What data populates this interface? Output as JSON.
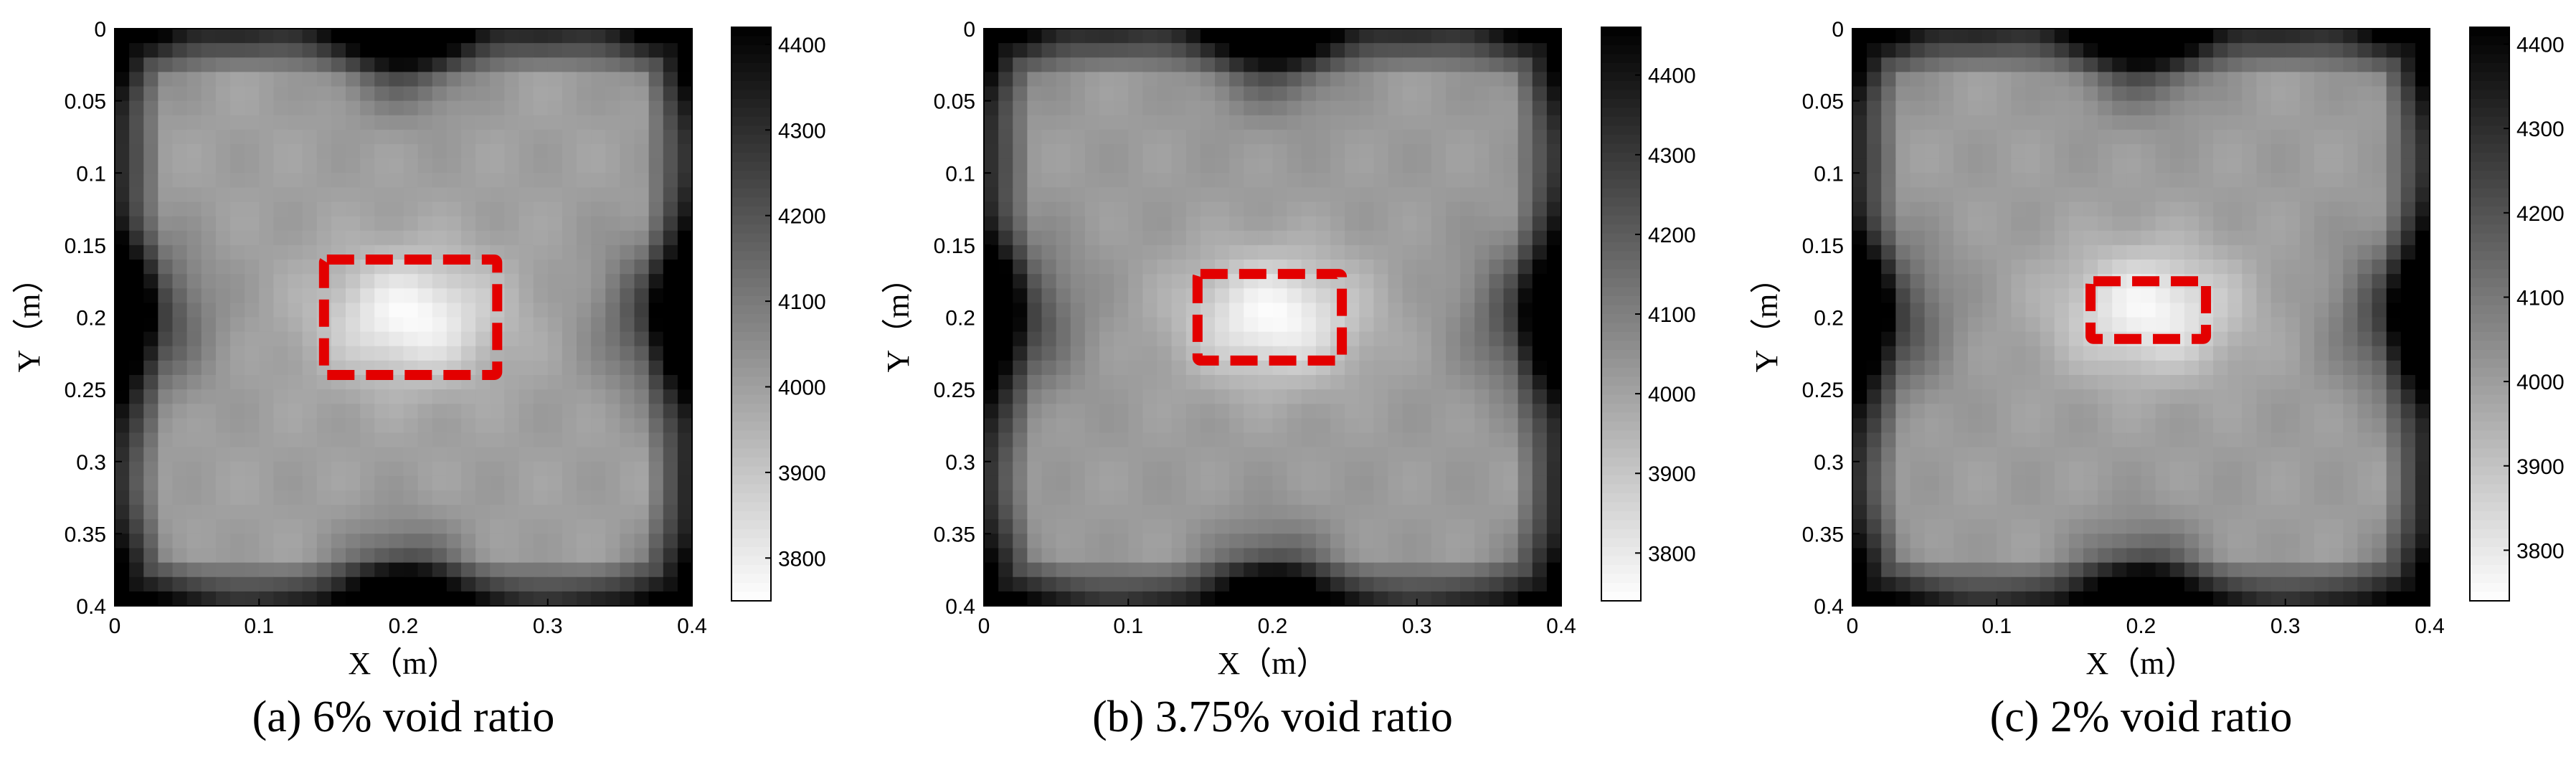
{
  "chart_data": [
    {
      "type": "heatmap",
      "caption": "(a) 6% void ratio",
      "xlabel": "X（m）",
      "ylabel": "Y（m）",
      "xlim": [
        0,
        0.4
      ],
      "ylim": [
        0,
        0.4
      ],
      "y_axis_direction": "top-to-bottom",
      "x_ticks": [
        "0",
        "0.1",
        "0.2",
        "0.3",
        "0.4"
      ],
      "y_ticks": [
        "0",
        "0.05",
        "0.1",
        "0.15",
        "0.2",
        "0.25",
        "0.3",
        "0.35",
        "0.4"
      ],
      "colorbar": {
        "range": [
          3750,
          4420
        ],
        "ticks": [
          "3800",
          "3900",
          "4000",
          "4100",
          "4200",
          "4300",
          "4400"
        ],
        "colormap": "gray-reversed"
      },
      "field": {
        "grid_size": 40,
        "interior_value": 4000,
        "edge_value": 4340,
        "corner_value": 4380,
        "notch_value": 4420,
        "void_center": [
          0.205,
          0.2
        ],
        "void_value": 3760
      },
      "void_region": {
        "x": [
          0.145,
          0.265
        ],
        "y": [
          0.16,
          0.24
        ],
        "outline_color": "#e30000"
      }
    },
    {
      "type": "heatmap",
      "caption": "(b) 3.75% void ratio",
      "xlabel": "X（m）",
      "ylabel": "Y（m）",
      "xlim": [
        0,
        0.4
      ],
      "ylim": [
        0,
        0.4
      ],
      "y_axis_direction": "top-to-bottom",
      "x_ticks": [
        "0",
        "0.1",
        "0.2",
        "0.3",
        "0.4"
      ],
      "y_ticks": [
        "0",
        "0.05",
        "0.1",
        "0.15",
        "0.2",
        "0.25",
        "0.3",
        "0.35",
        "0.4"
      ],
      "colorbar": {
        "range": [
          3740,
          4460
        ],
        "ticks": [
          "3800",
          "3900",
          "4000",
          "4100",
          "4200",
          "4300",
          "4400"
        ],
        "colormap": "gray-reversed"
      },
      "field": {
        "grid_size": 40,
        "interior_value": 4020,
        "edge_value": 4360,
        "corner_value": 4400,
        "notch_value": 4440,
        "void_center": [
          0.2,
          0.2
        ],
        "void_value": 3750
      },
      "void_region": {
        "x": [
          0.148,
          0.248
        ],
        "y": [
          0.17,
          0.23
        ],
        "outline_color": "#e30000"
      }
    },
    {
      "type": "heatmap",
      "caption": "(c) 2% void ratio",
      "xlabel": "X（m）",
      "ylabel": "Y（m）",
      "xlim": [
        0,
        0.4
      ],
      "ylim": [
        0,
        0.4
      ],
      "y_axis_direction": "top-to-bottom",
      "x_ticks": [
        "0",
        "0.1",
        "0.2",
        "0.3",
        "0.4"
      ],
      "y_ticks": [
        "0",
        "0.05",
        "0.1",
        "0.15",
        "0.2",
        "0.25",
        "0.3",
        "0.35",
        "0.4"
      ],
      "colorbar": {
        "range": [
          3740,
          4420
        ],
        "ticks": [
          "3800",
          "3900",
          "4000",
          "4100",
          "4200",
          "4300",
          "4400"
        ],
        "colormap": "gray-reversed"
      },
      "field": {
        "grid_size": 40,
        "interior_value": 4000,
        "edge_value": 4340,
        "corner_value": 4380,
        "notch_value": 4420,
        "void_center": [
          0.205,
          0.195
        ],
        "void_value": 3760
      },
      "void_region": {
        "x": [
          0.165,
          0.245
        ],
        "y": [
          0.175,
          0.215
        ],
        "outline_color": "#e30000"
      }
    }
  ]
}
